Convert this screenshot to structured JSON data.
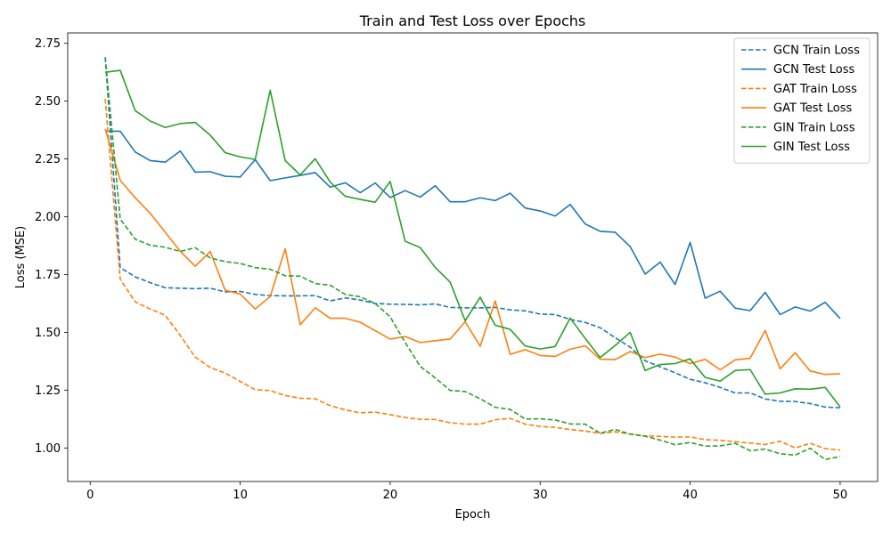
{
  "chart_data": {
    "type": "line",
    "title": "Train and Test Loss over Epochs",
    "xlabel": "Epoch",
    "ylabel": "Loss (MSE)",
    "xlim": [
      -1.5,
      52.5
    ],
    "ylim": [
      0.855,
      2.795
    ],
    "xticks": [
      0,
      10,
      20,
      30,
      40,
      50
    ],
    "yticks": [
      "1.00",
      "1.25",
      "1.50",
      "1.75",
      "2.00",
      "2.25",
      "2.50",
      "2.75"
    ],
    "grid": false,
    "legend_position": "top-right",
    "x": [
      1,
      2,
      3,
      4,
      5,
      6,
      7,
      8,
      9,
      10,
      11,
      12,
      13,
      14,
      15,
      16,
      17,
      18,
      19,
      20,
      21,
      22,
      23,
      24,
      25,
      26,
      27,
      28,
      29,
      30,
      31,
      32,
      33,
      34,
      35,
      36,
      37,
      38,
      39,
      40,
      41,
      42,
      43,
      44,
      45,
      46,
      47,
      48,
      49,
      50
    ],
    "series": [
      {
        "name": "GCN Train Loss",
        "color": "#1f77b4",
        "style": "dashed",
        "values": [
          2.69,
          1.78,
          1.74,
          1.715,
          1.693,
          1.691,
          1.689,
          1.691,
          1.675,
          1.677,
          1.664,
          1.659,
          1.658,
          1.658,
          1.659,
          1.636,
          1.649,
          1.64,
          1.625,
          1.622,
          1.621,
          1.619,
          1.623,
          1.608,
          1.606,
          1.606,
          1.608,
          1.597,
          1.593,
          1.579,
          1.577,
          1.556,
          1.543,
          1.52,
          1.477,
          1.436,
          1.377,
          1.351,
          1.325,
          1.297,
          1.282,
          1.262,
          1.238,
          1.238,
          1.212,
          1.202,
          1.201,
          1.192,
          1.177,
          1.174
        ]
      },
      {
        "name": "GCN Test Loss",
        "color": "#1f77b4",
        "style": "solid",
        "values": [
          2.37,
          2.37,
          2.28,
          2.243,
          2.236,
          2.284,
          2.193,
          2.195,
          2.175,
          2.172,
          2.247,
          2.156,
          2.168,
          2.179,
          2.191,
          2.128,
          2.147,
          2.104,
          2.146,
          2.083,
          2.113,
          2.085,
          2.134,
          2.065,
          2.065,
          2.082,
          2.07,
          2.102,
          2.038,
          2.025,
          2.003,
          2.053,
          1.969,
          1.937,
          1.933,
          1.871,
          1.752,
          1.804,
          1.707,
          1.889,
          1.648,
          1.678,
          1.605,
          1.594,
          1.673,
          1.577,
          1.61,
          1.592,
          1.63,
          1.56
        ]
      },
      {
        "name": "GAT Train Loss",
        "color": "#ff7f0e",
        "style": "dashed",
        "values": [
          2.51,
          1.73,
          1.632,
          1.601,
          1.574,
          1.487,
          1.393,
          1.348,
          1.324,
          1.288,
          1.252,
          1.248,
          1.227,
          1.215,
          1.213,
          1.183,
          1.165,
          1.152,
          1.155,
          1.144,
          1.132,
          1.124,
          1.123,
          1.109,
          1.103,
          1.103,
          1.122,
          1.128,
          1.103,
          1.093,
          1.089,
          1.08,
          1.073,
          1.063,
          1.07,
          1.06,
          1.052,
          1.05,
          1.047,
          1.048,
          1.036,
          1.033,
          1.027,
          1.021,
          1.015,
          1.029,
          1.0,
          1.02,
          0.997,
          0.991
        ]
      },
      {
        "name": "GAT Test Loss",
        "color": "#ff7f0e",
        "style": "solid",
        "values": [
          2.38,
          2.158,
          2.082,
          2.015,
          1.933,
          1.851,
          1.786,
          1.85,
          1.682,
          1.666,
          1.601,
          1.655,
          1.861,
          1.533,
          1.606,
          1.561,
          1.561,
          1.544,
          1.507,
          1.471,
          1.482,
          1.456,
          1.464,
          1.471,
          1.546,
          1.44,
          1.636,
          1.405,
          1.425,
          1.4,
          1.396,
          1.427,
          1.442,
          1.384,
          1.382,
          1.417,
          1.391,
          1.406,
          1.393,
          1.365,
          1.383,
          1.338,
          1.381,
          1.388,
          1.508,
          1.342,
          1.412,
          1.333,
          1.318,
          1.321
        ]
      },
      {
        "name": "GIN Train Loss",
        "color": "#2ca02c",
        "style": "dashed",
        "values": [
          2.69,
          1.99,
          1.903,
          1.877,
          1.868,
          1.85,
          1.866,
          1.822,
          1.806,
          1.798,
          1.78,
          1.773,
          1.745,
          1.743,
          1.711,
          1.704,
          1.664,
          1.654,
          1.625,
          1.567,
          1.456,
          1.353,
          1.303,
          1.249,
          1.244,
          1.213,
          1.176,
          1.167,
          1.125,
          1.126,
          1.121,
          1.104,
          1.103,
          1.064,
          1.08,
          1.06,
          1.051,
          1.034,
          1.014,
          1.024,
          1.008,
          1.009,
          1.02,
          0.988,
          0.995,
          0.975,
          0.969,
          0.999,
          0.95,
          0.963
        ]
      },
      {
        "name": "GIN Test Loss",
        "color": "#2ca02c",
        "style": "solid",
        "values": [
          2.625,
          2.633,
          2.459,
          2.414,
          2.386,
          2.403,
          2.408,
          2.353,
          2.277,
          2.259,
          2.248,
          2.547,
          2.243,
          2.181,
          2.251,
          2.15,
          2.089,
          2.075,
          2.063,
          2.153,
          1.894,
          1.867,
          1.781,
          1.717,
          1.55,
          1.652,
          1.531,
          1.513,
          1.441,
          1.428,
          1.439,
          1.562,
          1.474,
          1.391,
          1.443,
          1.5,
          1.335,
          1.361,
          1.365,
          1.385,
          1.305,
          1.289,
          1.335,
          1.339,
          1.233,
          1.238,
          1.256,
          1.254,
          1.262,
          1.178
        ]
      }
    ]
  }
}
